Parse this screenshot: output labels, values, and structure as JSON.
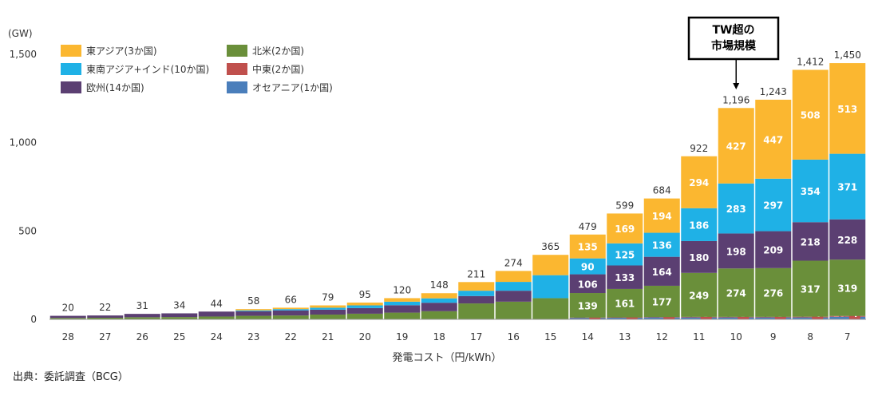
{
  "chart_data": {
    "type": "bar",
    "stacked": true,
    "unit_label": "(GW)",
    "xlabel": "発電コスト（円/kWh）",
    "ylim": [
      0,
      1600
    ],
    "y_ticks": [
      "0",
      "500",
      "1,000",
      "1,500"
    ],
    "y_tick_values": [
      0,
      500,
      1000,
      1500
    ],
    "legend_placement": "top-left",
    "categories": [
      "28",
      "27",
      "26",
      "25",
      "24",
      "23",
      "22",
      "21",
      "20",
      "19",
      "18",
      "17",
      "16",
      "15",
      "14",
      "13",
      "12",
      "11",
      "10",
      "9",
      "8",
      "7"
    ],
    "totals": [
      20,
      22,
      31,
      34,
      44,
      58,
      66,
      79,
      95,
      120,
      148,
      211,
      274,
      365,
      479,
      599,
      684,
      922,
      1196,
      1243,
      1412,
      1450
    ],
    "total_labels": [
      "20",
      "22",
      "31",
      "34",
      "44",
      "58",
      "66",
      "79",
      "95",
      "120",
      "148",
      "211",
      "274",
      "365",
      "479",
      "599",
      "684",
      "922",
      "1,196",
      "1,243",
      "1,412",
      "1,450"
    ],
    "series": [
      {
        "name": "オセアニア(1か国)",
        "color": "#4a7ebb",
        "values": [
          0,
          0,
          0,
          0,
          0,
          0,
          0,
          0,
          0,
          0,
          0,
          0,
          0,
          0,
          9,
          9,
          11,
          11,
          11,
          11,
          11,
          15
        ],
        "labels": [
          "",
          "",
          "",
          "",
          "",
          "",
          "",
          "",
          "",
          "",
          "",
          "",
          "",
          "",
          "9",
          "9",
          "11",
          "11",
          "11",
          "11",
          "11",
          "15"
        ]
      },
      {
        "name": "中東(2か国)",
        "color": "#c0504d",
        "values": [
          0,
          0,
          0,
          0,
          0,
          0,
          0,
          0,
          0,
          0,
          0,
          0,
          0,
          0,
          1,
          2,
          2,
          3,
          3,
          3,
          4,
          4
        ],
        "labels": [
          "",
          "",
          "",
          "",
          "",
          "",
          "",
          "",
          "",
          "",
          "",
          "",
          "",
          "",
          "1",
          "2",
          "2",
          "3",
          "3",
          "3",
          "4",
          "4"
        ]
      },
      {
        "name": "北米(2か国)",
        "color": "#6a8f3a",
        "values": [
          8,
          9,
          12,
          13,
          16,
          20,
          22,
          27,
          32,
          38,
          46,
          90,
          100,
          120,
          139,
          161,
          177,
          249,
          274,
          276,
          317,
          319
        ],
        "labels": [
          "",
          "",
          "",
          "",
          "",
          "",
          "",
          "",
          "",
          "",
          "",
          "",
          "",
          "",
          "139",
          "161",
          "177",
          "249",
          "274",
          "276",
          "317",
          "319"
        ]
      },
      {
        "name": "欧州(14か国)",
        "color": "#5b3f72",
        "values": [
          12,
          13,
          19,
          21,
          28,
          26,
          29,
          28,
          32,
          42,
          48,
          42,
          62,
          0,
          106,
          133,
          164,
          180,
          198,
          209,
          218,
          228
        ],
        "labels": [
          "",
          "",
          "",
          "",
          "",
          "",
          "",
          "",
          "",
          "",
          "",
          "",
          "",
          "",
          "106",
          "133",
          "164",
          "180",
          "198",
          "209",
          "218",
          "228"
        ]
      },
      {
        "name": "東南アジア+インド(10か国)",
        "color": "#1fb1e6",
        "values": [
          0,
          0,
          0,
          0,
          0,
          5,
          7,
          11,
          15,
          20,
          25,
          30,
          50,
          130,
          90,
          125,
          136,
          186,
          283,
          297,
          354,
          371
        ],
        "labels": [
          "",
          "",
          "",
          "",
          "",
          "",
          "",
          "",
          "",
          "",
          "",
          "",
          "",
          "",
          "90",
          "125",
          "136",
          "186",
          "283",
          "297",
          "354",
          "371"
        ]
      },
      {
        "name": "東アジア(3か国)",
        "color": "#fbb730",
        "values": [
          0,
          0,
          0,
          0,
          0,
          7,
          8,
          13,
          16,
          20,
          29,
          49,
          62,
          115,
          135,
          169,
          194,
          294,
          427,
          447,
          508,
          513
        ],
        "labels": [
          "",
          "",
          "",
          "",
          "",
          "",
          "",
          "",
          "",
          "",
          "",
          "",
          "",
          "",
          "135",
          "169",
          "194",
          "294",
          "427",
          "447",
          "508",
          "513"
        ]
      }
    ],
    "legend_order": [
      "東アジア(3か国)",
      "北米(2か国)",
      "東南アジア+インド(10か国)",
      "中東(2か国)",
      "欧州(14か国)",
      "オセアニア(1か国)"
    ],
    "callout": {
      "lines": [
        "TW超の",
        "市場規模"
      ],
      "target_category": "10"
    }
  },
  "source_note": "出典：委託調査（BCG）",
  "colors": {
    "axis": "#999999",
    "text": "#333333"
  }
}
